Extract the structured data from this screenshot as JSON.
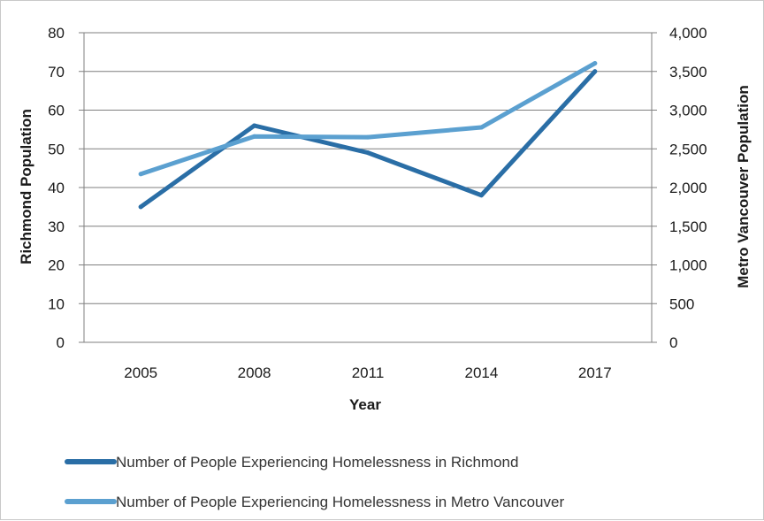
{
  "chart_data": {
    "type": "line",
    "categories": [
      "2005",
      "2008",
      "2011",
      "2014",
      "2017"
    ],
    "xlabel": "Year",
    "ylabel_left": "Richmond Population",
    "ylabel_right": "Metro Vancouver Population",
    "ylim_left": [
      0,
      80
    ],
    "ylim_right": [
      0,
      4000
    ],
    "yticks_left": [
      "0",
      "10",
      "20",
      "30",
      "40",
      "50",
      "60",
      "70",
      "80"
    ],
    "yticks_right": [
      "0",
      "500",
      "1,000",
      "1,500",
      "2,000",
      "2,500",
      "3,000",
      "3,500",
      "4,000"
    ],
    "grid": "horizontal",
    "legend_position": "bottom",
    "series": [
      {
        "name": "Number of People Experiencing Homelessness in Richmond",
        "axis": "left",
        "color": "#2a6ea6",
        "values": [
          35,
          56,
          49,
          38,
          70
        ]
      },
      {
        "name": "Number of People Experiencing Homelessness in Metro Vancouver",
        "axis": "right",
        "color": "#5ba0d0",
        "values": [
          2174,
          2660,
          2650,
          2777,
          3605
        ]
      }
    ]
  }
}
